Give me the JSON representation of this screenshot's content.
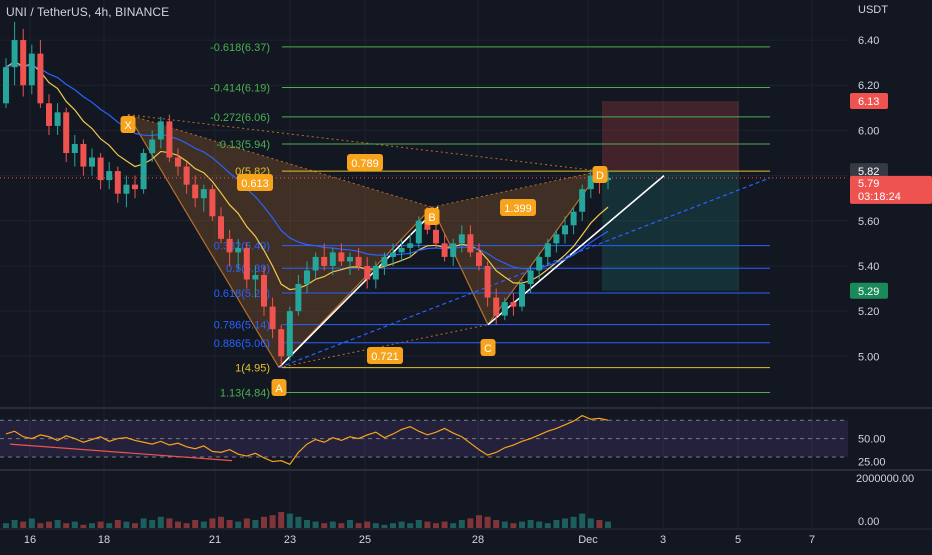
{
  "header": {
    "title": "UNI / TetherUS, 4h, BINANCE",
    "axis_currency": "USDT"
  },
  "colors": {
    "background": "#131722",
    "grid": "#1e222d",
    "up": "#26a69a",
    "down": "#ef5350",
    "pattern_fill": "#b8702a",
    "pattern_label": "#f7a31c",
    "fib_green": "#4caf50",
    "fib_blue": "#2962ff",
    "fib_yellow": "#e4c12d",
    "rsi": "#f7a31c",
    "rsi_band": "#7e57c2"
  },
  "chart_data": [
    {
      "type": "candlestick",
      "title": "UNI / TetherUS, 4h, BINANCE",
      "ylim": [
        4.78,
        6.48
      ],
      "y_ticks": [
        "6.40",
        "6.20",
        "6.00",
        "5.80",
        "5.60",
        "5.40",
        "5.20",
        "5.00"
      ],
      "x_ticks": [
        "16",
        "18",
        "21",
        "23",
        "25",
        "28",
        "Dec",
        "3",
        "5",
        "7"
      ],
      "current_price": "5.79",
      "countdown": "03:18:24",
      "price_tags": [
        {
          "label": "6.13",
          "kind": "stop"
        },
        {
          "label": "5.82",
          "kind": "level"
        },
        {
          "label": "5.29",
          "kind": "target"
        }
      ],
      "harmonic_pattern": {
        "points": [
          {
            "label": "X",
            "x": "Nov 18 12:00",
            "y": 6.07
          },
          {
            "label": "A",
            "x": "Nov 22 16:00",
            "y": 4.95
          },
          {
            "label": "B",
            "x": "Nov 26 16:00",
            "y": 5.66
          },
          {
            "label": "C",
            "x": "Nov 28 08:00",
            "y": 5.14
          },
          {
            "label": "D",
            "x": "Nov 30 20:00",
            "y": 5.82
          }
        ],
        "ratios": [
          "0.789",
          "0.613",
          "1.399",
          "0.721"
        ]
      },
      "fib_levels": [
        {
          "label": "-0.618(6.37)",
          "value": 6.37,
          "group": "green"
        },
        {
          "label": "-0.414(6.19)",
          "value": 6.19,
          "group": "green"
        },
        {
          "label": "-0.272(6.06)",
          "value": 6.06,
          "group": "green"
        },
        {
          "label": "-0.13(5.94)",
          "value": 5.94,
          "group": "green"
        },
        {
          "label": "0(5.82)",
          "value": 5.82,
          "group": "yellow"
        },
        {
          "label": "0.382(5.49)",
          "value": 5.49,
          "group": "blue"
        },
        {
          "label": "0.5(5.39)",
          "value": 5.39,
          "group": "blue"
        },
        {
          "label": "0.618(5.28)",
          "value": 5.28,
          "group": "blue"
        },
        {
          "label": "0.786(5.14)",
          "value": 5.14,
          "group": "blue"
        },
        {
          "label": "0.886(5.06)",
          "value": 5.06,
          "group": "blue"
        },
        {
          "label": "1(4.95)",
          "value": 4.95,
          "group": "yellow"
        },
        {
          "label": "1.13(4.84)",
          "value": 4.84,
          "group": "green"
        }
      ],
      "trade_box": {
        "entry": 5.82,
        "stop": 6.13,
        "target": 5.29
      },
      "candles": [
        [
          6.12,
          6.32,
          6.1,
          6.28
        ],
        [
          6.28,
          6.48,
          6.2,
          6.4
        ],
        [
          6.4,
          6.45,
          6.15,
          6.2
        ],
        [
          6.2,
          6.38,
          6.16,
          6.34
        ],
        [
          6.34,
          6.4,
          6.1,
          6.12
        ],
        [
          6.12,
          6.16,
          5.98,
          6.02
        ],
        [
          6.02,
          6.12,
          5.98,
          6.08
        ],
        [
          6.08,
          6.1,
          5.86,
          5.9
        ],
        [
          5.9,
          5.98,
          5.84,
          5.94
        ],
        [
          5.94,
          5.96,
          5.8,
          5.84
        ],
        [
          5.84,
          5.92,
          5.8,
          5.88
        ],
        [
          5.88,
          5.9,
          5.74,
          5.78
        ],
        [
          5.78,
          5.86,
          5.74,
          5.82
        ],
        [
          5.82,
          5.84,
          5.68,
          5.72
        ],
        [
          5.72,
          5.8,
          5.66,
          5.76
        ],
        [
          5.76,
          5.8,
          5.7,
          5.74
        ],
        [
          5.74,
          5.92,
          5.72,
          5.9
        ],
        [
          5.9,
          6.0,
          5.86,
          5.96
        ],
        [
          5.96,
          6.06,
          5.92,
          6.04
        ],
        [
          6.04,
          6.07,
          5.86,
          5.88
        ],
        [
          5.88,
          5.92,
          5.8,
          5.84
        ],
        [
          5.84,
          5.86,
          5.72,
          5.76
        ],
        [
          5.76,
          5.8,
          5.66,
          5.7
        ],
        [
          5.7,
          5.76,
          5.64,
          5.74
        ],
        [
          5.74,
          5.76,
          5.6,
          5.62
        ],
        [
          5.62,
          5.66,
          5.5,
          5.52
        ],
        [
          5.52,
          5.56,
          5.4,
          5.46
        ],
        [
          5.46,
          5.52,
          5.38,
          5.48
        ],
        [
          5.48,
          5.5,
          5.3,
          5.34
        ],
        [
          5.34,
          5.4,
          5.26,
          5.36
        ],
        [
          5.36,
          5.4,
          5.18,
          5.22
        ],
        [
          5.22,
          5.26,
          5.08,
          5.12
        ],
        [
          5.12,
          5.14,
          4.95,
          5.0
        ],
        [
          5.0,
          5.22,
          4.98,
          5.2
        ],
        [
          5.2,
          5.36,
          5.18,
          5.32
        ],
        [
          5.32,
          5.42,
          5.28,
          5.38
        ],
        [
          5.38,
          5.46,
          5.34,
          5.44
        ],
        [
          5.44,
          5.5,
          5.38,
          5.4
        ],
        [
          5.4,
          5.48,
          5.36,
          5.46
        ],
        [
          5.46,
          5.5,
          5.4,
          5.42
        ],
        [
          5.42,
          5.46,
          5.36,
          5.44
        ],
        [
          5.44,
          5.48,
          5.38,
          5.4
        ],
        [
          5.4,
          5.44,
          5.3,
          5.34
        ],
        [
          5.34,
          5.42,
          5.3,
          5.4
        ],
        [
          5.4,
          5.46,
          5.36,
          5.44
        ],
        [
          5.44,
          5.5,
          5.4,
          5.46
        ],
        [
          5.46,
          5.52,
          5.42,
          5.48
        ],
        [
          5.48,
          5.54,
          5.44,
          5.5
        ],
        [
          5.5,
          5.62,
          5.48,
          5.6
        ],
        [
          5.6,
          5.66,
          5.54,
          5.56
        ],
        [
          5.56,
          5.6,
          5.48,
          5.5
        ],
        [
          5.5,
          5.54,
          5.42,
          5.44
        ],
        [
          5.44,
          5.52,
          5.4,
          5.5
        ],
        [
          5.5,
          5.58,
          5.46,
          5.54
        ],
        [
          5.54,
          5.58,
          5.44,
          5.46
        ],
        [
          5.46,
          5.5,
          5.38,
          5.4
        ],
        [
          5.4,
          5.42,
          5.22,
          5.26
        ],
        [
          5.26,
          5.3,
          5.14,
          5.18
        ],
        [
          5.18,
          5.26,
          5.16,
          5.24
        ],
        [
          5.24,
          5.28,
          5.18,
          5.22
        ],
        [
          5.22,
          5.34,
          5.2,
          5.32
        ],
        [
          5.32,
          5.4,
          5.28,
          5.38
        ],
        [
          5.38,
          5.46,
          5.34,
          5.44
        ],
        [
          5.44,
          5.52,
          5.4,
          5.5
        ],
        [
          5.5,
          5.56,
          5.46,
          5.54
        ],
        [
          5.54,
          5.62,
          5.5,
          5.58
        ],
        [
          5.58,
          5.66,
          5.54,
          5.64
        ],
        [
          5.64,
          5.76,
          5.6,
          5.74
        ],
        [
          5.74,
          5.82,
          5.7,
          5.8
        ],
        [
          5.8,
          5.84,
          5.72,
          5.78
        ],
        [
          5.78,
          5.82,
          5.74,
          5.79
        ]
      ],
      "indicators": [
        "EMA (yellow)",
        "EMA (blue)"
      ]
    },
    {
      "type": "line",
      "ylim": [
        18,
        80
      ],
      "y_ticks": [
        "50.00",
        "25.00"
      ],
      "band": [
        30,
        70
      ],
      "values": [
        55,
        58,
        52,
        50,
        54,
        52,
        48,
        53,
        50,
        46,
        49,
        52,
        47,
        50,
        51,
        48,
        46,
        44,
        47,
        43,
        45,
        41,
        39,
        42,
        36,
        35,
        38,
        33,
        31,
        34,
        29,
        25,
        26,
        22,
        35,
        44,
        49,
        46,
        51,
        48,
        52,
        50,
        54,
        57,
        51,
        55,
        60,
        63,
        58,
        54,
        57,
        61,
        56,
        52,
        45,
        38,
        32,
        35,
        40,
        43,
        47,
        50,
        54,
        58,
        61,
        65,
        69,
        75,
        71,
        72,
        70
      ]
    },
    {
      "type": "bar",
      "y_ticks": [
        "2000000.00",
        "0.00"
      ],
      "values": [
        0.3,
        0.5,
        0.4,
        0.6,
        0.3,
        0.4,
        0.5,
        0.3,
        0.4,
        0.2,
        0.3,
        0.4,
        0.3,
        0.5,
        0.4,
        0.3,
        0.6,
        0.5,
        0.7,
        0.6,
        0.4,
        0.3,
        0.5,
        0.4,
        0.6,
        0.7,
        0.5,
        0.4,
        0.6,
        0.5,
        0.7,
        0.8,
        1.0,
        0.9,
        0.7,
        0.5,
        0.4,
        0.3,
        0.4,
        0.3,
        0.5,
        0.3,
        0.4,
        0.3,
        0.2,
        0.3,
        0.4,
        0.3,
        0.5,
        0.4,
        0.3,
        0.4,
        0.3,
        0.5,
        0.6,
        0.8,
        0.7,
        0.5,
        0.4,
        0.3,
        0.4,
        0.5,
        0.4,
        0.3,
        0.5,
        0.6,
        0.7,
        0.9,
        0.6,
        0.5,
        0.4
      ]
    }
  ]
}
